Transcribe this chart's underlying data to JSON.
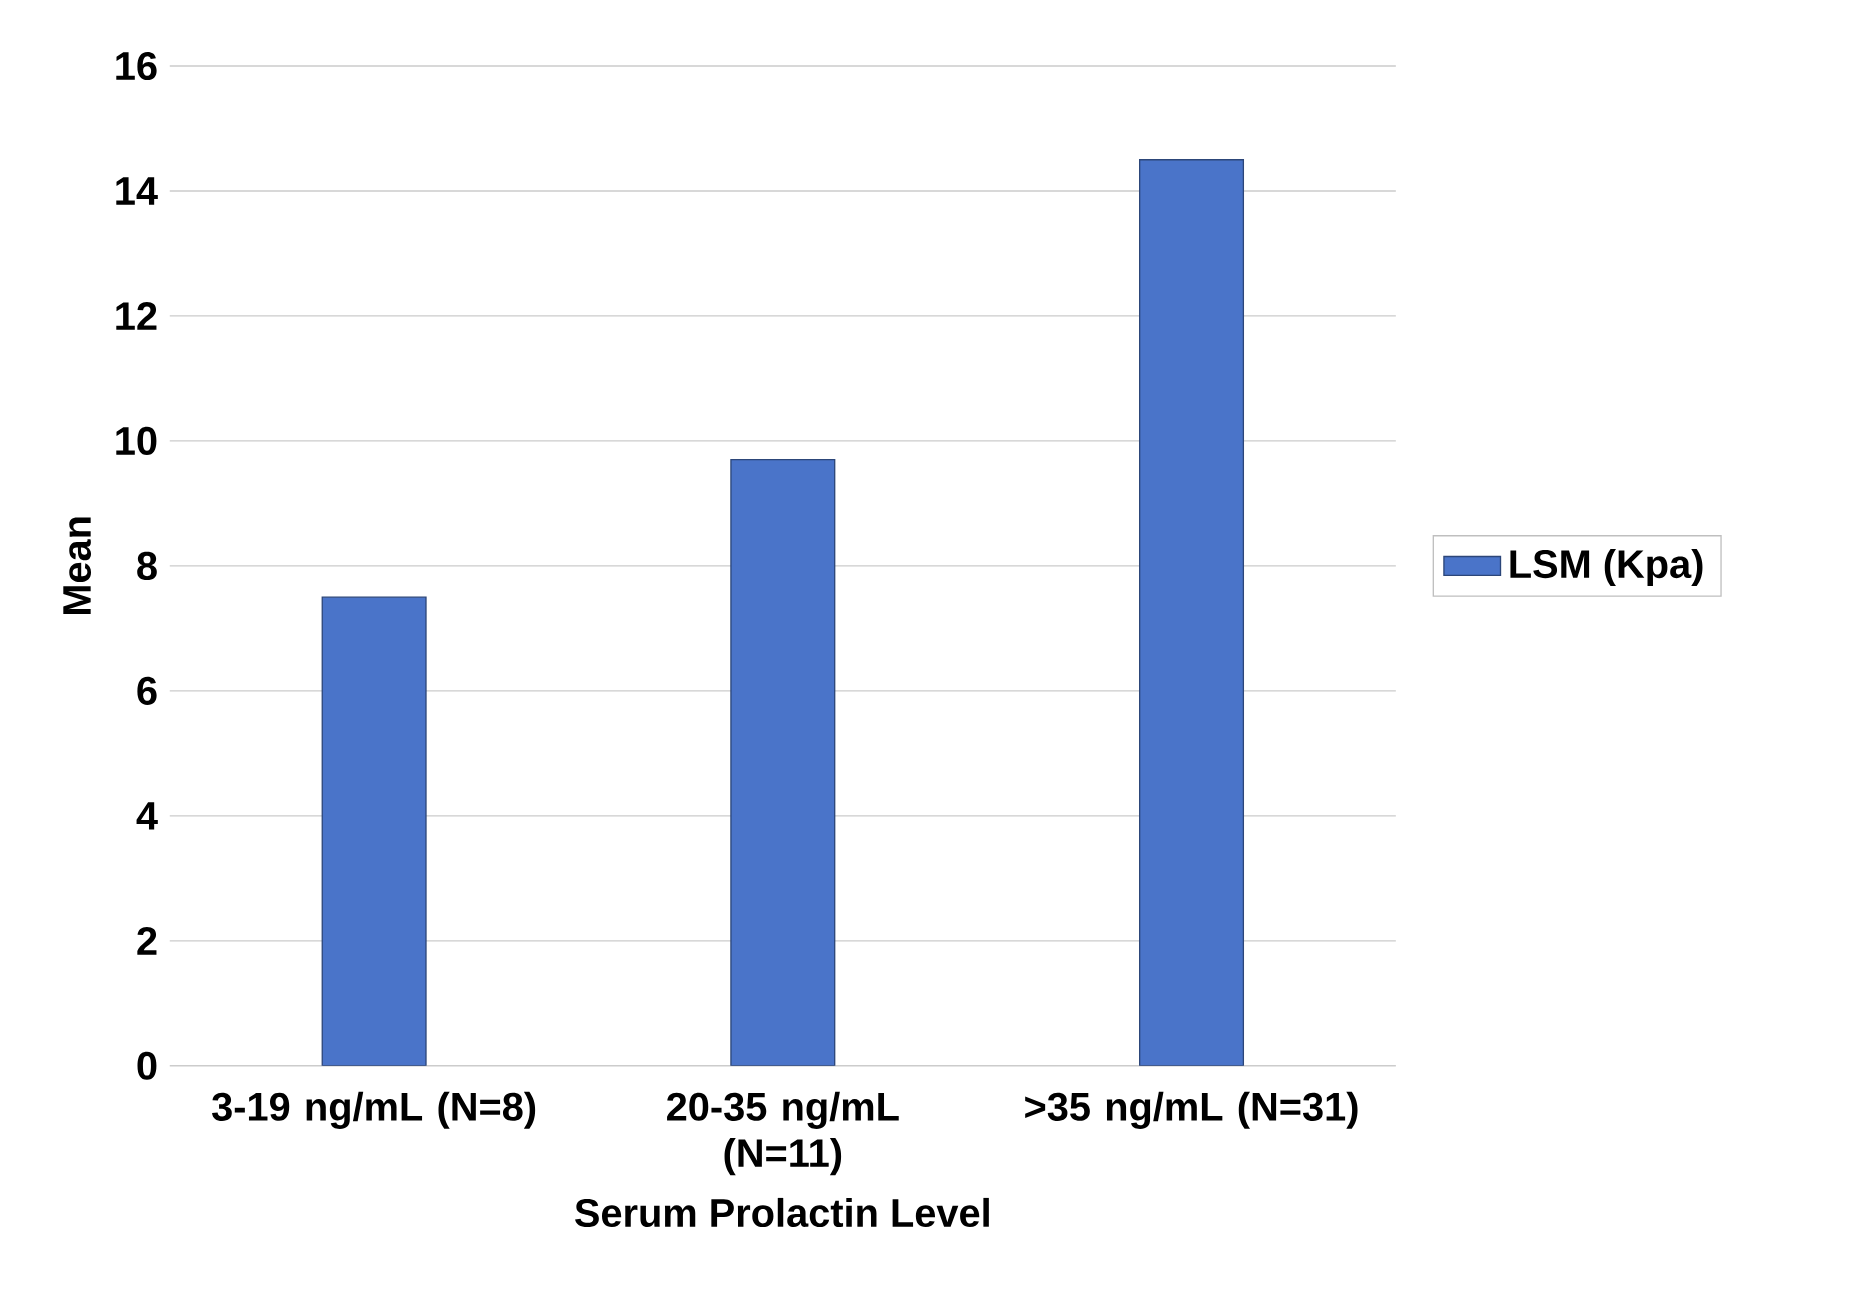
{
  "chart_data": {
    "type": "bar",
    "xlabel": "Serum Prolactin Level",
    "ylabel": "Mean",
    "categories": [
      "3-19 ng/mL (N=8)",
      "20-35 ng/mL (N=11)",
      ">35 ng/mL (N=31)"
    ],
    "series": [
      {
        "name": "LSM (Kpa)",
        "color": "#4a74c9",
        "values": [
          7.5,
          9.7,
          14.5
        ]
      }
    ],
    "ylim": [
      0,
      16
    ],
    "yticks": [
      0,
      2,
      4,
      6,
      8,
      10,
      12,
      14,
      16
    ],
    "grid": "y",
    "legend": "right"
  }
}
